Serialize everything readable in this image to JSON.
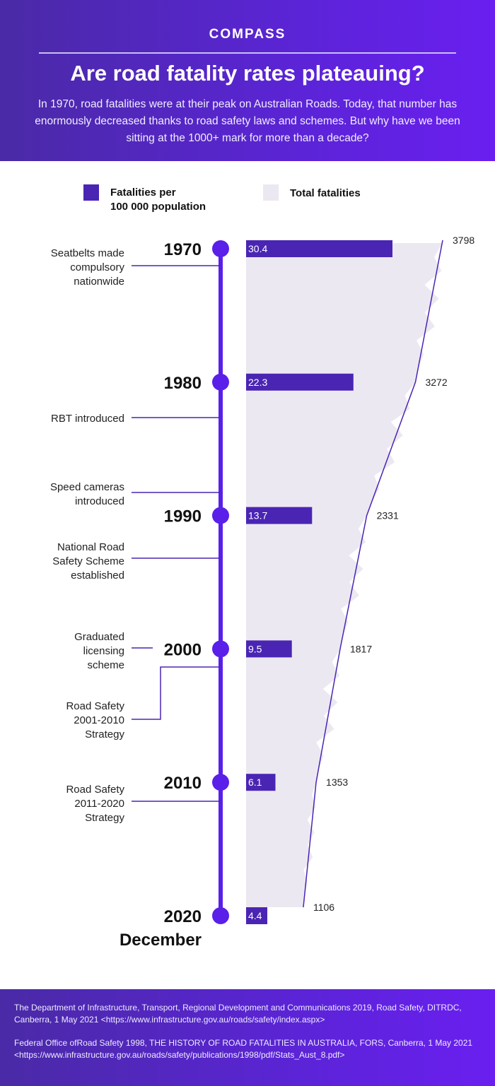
{
  "header": {
    "brand": "COMPASS",
    "title": "Are road fatality rates plateauing?",
    "intro": "In 1970, road fatalities were at their peak on Australian Roads. Today, that number has enormously decreased thanks to road safety laws and schemes. But why have we been sitting at the 1000+ mark for more than a decade?"
  },
  "legend": {
    "rate": "Fatalities per",
    "rate_line2": "100 000 population",
    "total": "Total fatalities"
  },
  "colors": {
    "accent": "#5a1fe8",
    "bar": "#4a25b4",
    "area": "#ece8f1",
    "header": "#5b24d6"
  },
  "chart_data": {
    "type": "bar",
    "title": "Are road fatality rates plateauing?",
    "categories": [
      "1970",
      "1980",
      "1990",
      "2000",
      "2010",
      "2020"
    ],
    "last_category_note": "December",
    "series": [
      {
        "name": "Fatalities per 100 000 population",
        "values": [
          30.4,
          22.3,
          13.7,
          9.5,
          6.1,
          4.4
        ]
      },
      {
        "name": "Total fatalities",
        "values": [
          3798,
          3272,
          2331,
          1817,
          1353,
          1106
        ]
      }
    ]
  },
  "events": [
    {
      "text": "Seatbelts made compulsory nationwide",
      "lines": [
        "Seatbelts made",
        "compulsory",
        "nationwide"
      ]
    },
    {
      "text": "RBT introduced",
      "lines": [
        "RBT introduced"
      ]
    },
    {
      "text": "Speed cameras introduced",
      "lines": [
        "Speed cameras",
        "introduced"
      ]
    },
    {
      "text": "National Road Safety Scheme established",
      "lines": [
        "National Road",
        "Safety Scheme",
        "established"
      ]
    },
    {
      "text": "Graduated licensing scheme",
      "lines": [
        "Graduated",
        "licensing",
        "scheme"
      ]
    },
    {
      "text": "Road Safety 2001-2010 Strategy",
      "lines": [
        "Road Safety",
        "2001-2010",
        "Strategy"
      ]
    },
    {
      "text": "Road Safety 2011-2020 Strategy",
      "lines": [
        "Road Safety",
        "2011-2020",
        "Strategy"
      ]
    }
  ],
  "sources": [
    "The Department of Infrastructure, Transport, Regional Development and Communications 2019, Road Safety, DITRDC, Canberra, 1 May 2021 <https://www.infrastructure.gov.au/roads/safety/index.aspx>",
    "Federal Office ofRoad Safety 1998, THE HISTORY OF ROAD FATALITIES IN AUSTRALIA, FORS, Canberra, 1 May 2021 <https://www.infrastructure.gov.au/roads/safety/publications/1998/pdf/Stats_Aust_8.pdf>"
  ]
}
